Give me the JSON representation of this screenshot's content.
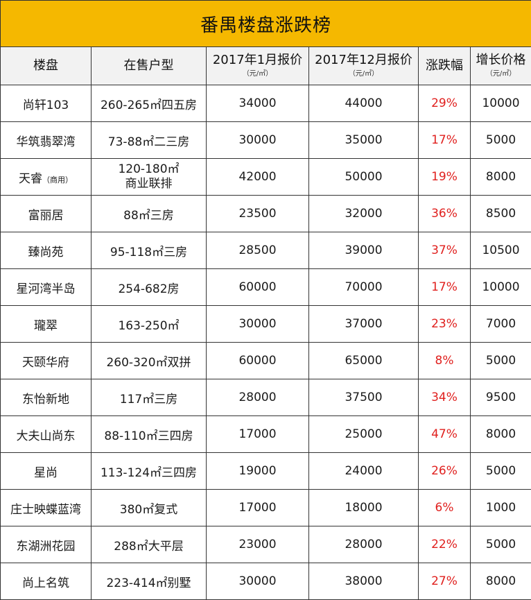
{
  "title": "番禺楼盘涨跌榜",
  "headers": {
    "col1": "楼盘",
    "col2": "在售户型",
    "col3": "2017年1月报价",
    "col3_unit": "（元/㎡）",
    "col4": "2017年12月报价",
    "col4_unit": "（元/㎡）",
    "col5": "涨跌幅",
    "col6": "增长价格",
    "col6_unit": "（元/㎡）"
  },
  "rows": [
    {
      "name": "尚轩103",
      "tag": "",
      "type": "260-265㎡四五房",
      "type2": "",
      "jan": "34000",
      "dec": "44000",
      "change": "29%",
      "growth": "10000"
    },
    {
      "name": "华筑翡翠湾",
      "tag": "",
      "type": "73-88㎡二三房",
      "type2": "",
      "jan": "30000",
      "dec": "35000",
      "change": "17%",
      "growth": "5000"
    },
    {
      "name": "天睿",
      "tag": "（商用）",
      "type": "120-180㎡",
      "type2": "商业联排",
      "jan": "42000",
      "dec": "50000",
      "change": "19%",
      "growth": "8000"
    },
    {
      "name": "富丽居",
      "tag": "",
      "type": "88㎡三房",
      "type2": "",
      "jan": "23500",
      "dec": "32000",
      "change": "36%",
      "growth": "8500"
    },
    {
      "name": "臻尚苑",
      "tag": "",
      "type": "95-118㎡三房",
      "type2": "",
      "jan": "28500",
      "dec": "39000",
      "change": "37%",
      "growth": "10500"
    },
    {
      "name": "星河湾半岛",
      "tag": "",
      "type": "254-682房",
      "type2": "",
      "jan": "60000",
      "dec": "70000",
      "change": "17%",
      "growth": "10000"
    },
    {
      "name": "瓏翠",
      "tag": "",
      "type": "163-250㎡",
      "type2": "",
      "jan": "30000",
      "dec": "37000",
      "change": "23%",
      "growth": "7000"
    },
    {
      "name": "天颐华府",
      "tag": "",
      "type": "260-320㎡双拼",
      "type2": "",
      "jan": "60000",
      "dec": "65000",
      "change": "8%",
      "growth": "5000"
    },
    {
      "name": "东怡新地",
      "tag": "",
      "type": "117㎡三房",
      "type2": "",
      "jan": "28000",
      "dec": "37500",
      "change": "34%",
      "growth": "9500"
    },
    {
      "name": "大夫山尚东",
      "tag": "",
      "type": "88-110㎡三四房",
      "type2": "",
      "jan": "17000",
      "dec": "25000",
      "change": "47%",
      "growth": "8000"
    },
    {
      "name": "星尚",
      "tag": "",
      "type": "113-124㎡三四房",
      "type2": "",
      "jan": "19000",
      "dec": "24000",
      "change": "26%",
      "growth": "5000"
    },
    {
      "name": "庄士映蝶蓝湾",
      "tag": "",
      "type": "380㎡复式",
      "type2": "",
      "jan": "17000",
      "dec": "18000",
      "change": "6%",
      "growth": "1000"
    },
    {
      "name": "东湖洲花园",
      "tag": "",
      "type": "288㎡大平层",
      "type2": "",
      "jan": "23000",
      "dec": "28000",
      "change": "22%",
      "growth": "5000"
    },
    {
      "name": "尚上名筑",
      "tag": "",
      "type": "223-414㎡别墅",
      "type2": "",
      "jan": "30000",
      "dec": "38000",
      "change": "27%",
      "growth": "8000"
    }
  ]
}
